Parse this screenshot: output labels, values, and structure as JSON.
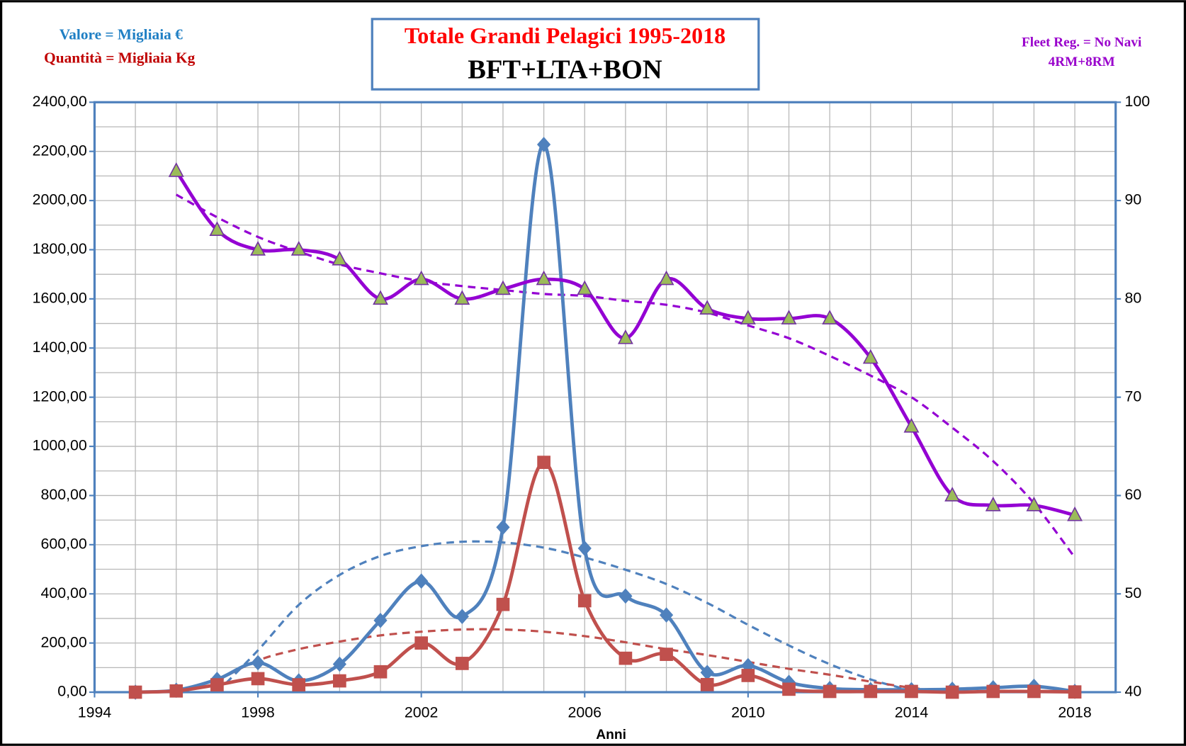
{
  "chart_data": {
    "type": "line",
    "title": "Totale Grandi Pelagici 1995-2018",
    "subtitle": "BFT+LTA+BON",
    "annotations": [
      "Valore = Migliaia €",
      "Quantità = Migliaia Kg",
      "Fleet Reg. = No Navi",
      "4RM+8RM"
    ],
    "xlabel": "Anni",
    "x": [
      1995,
      1996,
      1997,
      1998,
      1999,
      2000,
      2001,
      2002,
      2003,
      2004,
      2005,
      2006,
      2007,
      2008,
      2009,
      2010,
      2011,
      2012,
      2013,
      2014,
      2015,
      2016,
      2017,
      2018
    ],
    "xlim": [
      1994,
      2019
    ],
    "xticks": [
      1994,
      1998,
      2002,
      2006,
      2010,
      2014,
      2018
    ],
    "xgrid": [
      1994,
      1995,
      1996,
      1997,
      1998,
      1999,
      2000,
      2001,
      2002,
      2003,
      2004,
      2005,
      2006,
      2007,
      2008,
      2009,
      2010,
      2011,
      2012,
      2013,
      2014,
      2015,
      2016,
      2017,
      2018,
      2019
    ],
    "ylim": [
      0,
      2400
    ],
    "yticks": [
      {
        "value": 0,
        "label": "0,00"
      },
      {
        "value": 200,
        "label": "200,00"
      },
      {
        "value": 400,
        "label": "400,00"
      },
      {
        "value": 600,
        "label": "600,00"
      },
      {
        "value": 800,
        "label": "800,00"
      },
      {
        "value": 1000,
        "label": "1000,00"
      },
      {
        "value": 1200,
        "label": "1200,00"
      },
      {
        "value": 1400,
        "label": "1400,00"
      },
      {
        "value": 1600,
        "label": "1600,00"
      },
      {
        "value": 1800,
        "label": "1800,00"
      },
      {
        "value": 2000,
        "label": "2000,00"
      },
      {
        "value": 2200,
        "label": "2200,00"
      },
      {
        "value": 2400,
        "label": "2400,00"
      }
    ],
    "ygrid": [
      0,
      100,
      200,
      300,
      400,
      500,
      600,
      700,
      800,
      900,
      1000,
      1100,
      1200,
      1300,
      1400,
      1500,
      1600,
      1700,
      1800,
      1900,
      2000,
      2100,
      2200,
      2300,
      2400
    ],
    "y2lim": [
      40,
      100
    ],
    "y2ticks": [
      40,
      50,
      60,
      70,
      80,
      90,
      100
    ],
    "grid": true,
    "series": [
      {
        "color": "#4f81bd",
        "marker": "diamond",
        "marker_color": "#4f81bd",
        "values": [
          0,
          8,
          52,
          120,
          46,
          114,
          292,
          452,
          308,
          671,
          2228,
          585,
          391,
          314,
          80,
          108,
          40,
          15,
          10,
          10,
          12,
          18,
          24,
          3
        ],
        "trend": [
          null,
          null,
          0,
          170,
          355,
          477,
          554,
          594,
          612,
          609,
          588,
          548,
          498,
          440,
          363,
          274,
          190,
          114,
          52,
          6,
          null,
          null,
          null,
          null
        ]
      },
      {
        "color": "#c0504d",
        "marker": "square",
        "marker_color": "#c0504d",
        "values": [
          0,
          5,
          30,
          55,
          30,
          46,
          83,
          200,
          117,
          357,
          935,
          372,
          138,
          154,
          31,
          68,
          12,
          3,
          3,
          3,
          0,
          3,
          3,
          1
        ],
        "trend": [
          null,
          null,
          46,
          129,
          175,
          206,
          231,
          246,
          255,
          255,
          246,
          228,
          203,
          175,
          151,
          123,
          95,
          71,
          43,
          18,
          0,
          null,
          null,
          null
        ]
      },
      {
        "color": "#9400d3",
        "marker": "triangle",
        "marker_color": "#9bbb59",
        "axis": "y2",
        "values": [
          null,
          93,
          87,
          85,
          85,
          84,
          80,
          82,
          80,
          81,
          82,
          81,
          76,
          82,
          79,
          78,
          78,
          78,
          74,
          67,
          60,
          59,
          59,
          58
        ],
        "trend": [
          null,
          90.6,
          88.3,
          86.3,
          84.8,
          83.5,
          82.6,
          81.8,
          81.3,
          80.9,
          80.5,
          80.3,
          79.8,
          79.4,
          78.6,
          77.3,
          76,
          74.2,
          72.2,
          70,
          66.9,
          63.5,
          59.2,
          53.7
        ]
      }
    ]
  }
}
